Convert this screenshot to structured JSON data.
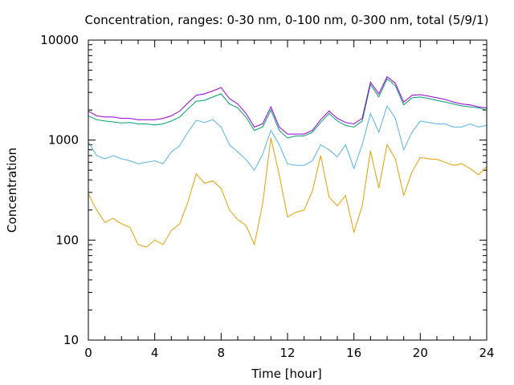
{
  "chart_data": {
    "type": "line",
    "title": "Concentration, ranges: 0-30 nm, 0-100 nm, 0-300 nm, total (5/9/1)",
    "xlabel": "Time [hour]",
    "ylabel": "Concentration",
    "xlim": [
      0,
      24
    ],
    "ylim": [
      10,
      10000
    ],
    "y_scale": "log",
    "x_ticks": [
      0,
      4,
      8,
      12,
      16,
      20,
      24
    ],
    "y_ticks": [
      10,
      100,
      1000,
      10000
    ],
    "grid": false,
    "legend": "none",
    "x": [
      0,
      0.5,
      1,
      1.5,
      2,
      2.5,
      3,
      3.5,
      4,
      4.5,
      5,
      5.5,
      6,
      6.5,
      7,
      7.5,
      8,
      8.5,
      9,
      9.5,
      10,
      10.5,
      11,
      11.5,
      12,
      12.5,
      13,
      13.5,
      14,
      14.5,
      15,
      15.5,
      16,
      16.5,
      17,
      17.5,
      18,
      18.5,
      19,
      19.5,
      20,
      20.5,
      21,
      21.5,
      22,
      22.5,
      23,
      23.5,
      24
    ],
    "series": [
      {
        "color": "#e69f00",
        "values": [
          290,
          200,
          150,
          165,
          145,
          135,
          90,
          85,
          100,
          90,
          125,
          145,
          240,
          460,
          370,
          390,
          330,
          200,
          160,
          140,
          90,
          230,
          1050,
          450,
          170,
          190,
          200,
          310,
          700,
          270,
          220,
          280,
          120,
          220,
          780,
          330,
          900,
          650,
          280,
          480,
          670,
          650,
          640,
          600,
          560,
          580,
          520,
          450,
          540
        ]
      },
      {
        "color": "#56b4e9",
        "values": [
          960,
          700,
          650,
          700,
          650,
          620,
          580,
          600,
          620,
          580,
          760,
          880,
          1200,
          1580,
          1500,
          1600,
          1350,
          900,
          760,
          640,
          500,
          720,
          1250,
          900,
          580,
          560,
          560,
          620,
          900,
          800,
          680,
          900,
          520,
          900,
          1850,
          1200,
          2200,
          1650,
          800,
          1200,
          1550,
          1500,
          1450,
          1450,
          1350,
          1350,
          1450,
          1350,
          1400
        ]
      },
      {
        "color": "#009e73",
        "values": [
          1750,
          1600,
          1550,
          1520,
          1480,
          1500,
          1450,
          1450,
          1420,
          1450,
          1550,
          1700,
          2050,
          2450,
          2500,
          2700,
          2900,
          2300,
          2100,
          1700,
          1250,
          1350,
          2000,
          1250,
          1050,
          1100,
          1100,
          1200,
          1500,
          1850,
          1550,
          1400,
          1350,
          1550,
          3600,
          2700,
          4100,
          3500,
          2250,
          2650,
          2700,
          2600,
          2500,
          2400,
          2300,
          2200,
          2150,
          2100,
          2000
        ]
      },
      {
        "color": "#9400d3",
        "values": [
          1950,
          1750,
          1700,
          1700,
          1650,
          1650,
          1600,
          1600,
          1600,
          1650,
          1750,
          1950,
          2350,
          2800,
          2900,
          3100,
          3350,
          2600,
          2300,
          1850,
          1350,
          1450,
          2150,
          1350,
          1150,
          1150,
          1150,
          1250,
          1600,
          1950,
          1650,
          1500,
          1450,
          1650,
          3800,
          2900,
          4300,
          3700,
          2400,
          2800,
          2850,
          2750,
          2650,
          2550,
          2400,
          2300,
          2250,
          2150,
          2100
        ]
      }
    ]
  }
}
